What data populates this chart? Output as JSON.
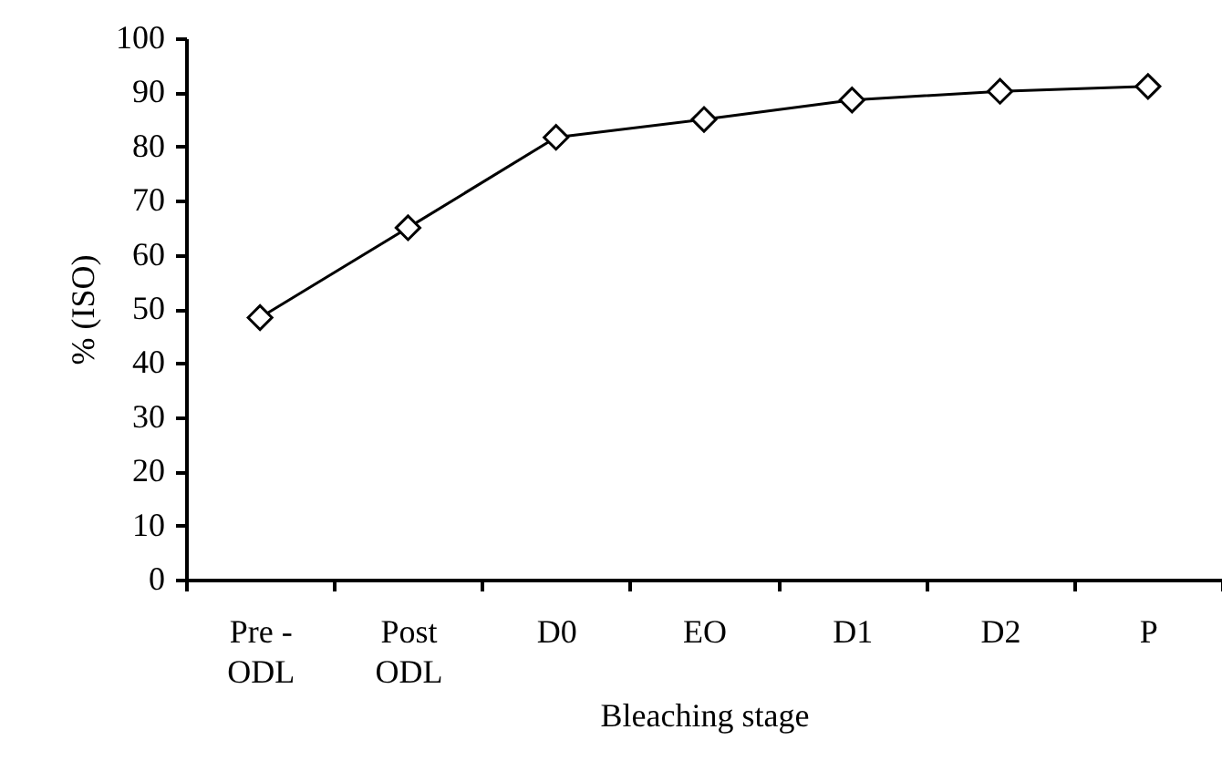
{
  "chart_data": {
    "type": "line",
    "xlabel": "Bleaching stage",
    "ylabel": "% (ISO)",
    "categories": [
      "Pre - ODL",
      "Post ODL",
      "D0",
      "EO",
      "D1",
      "D2",
      "P"
    ],
    "series": [
      {
        "color": "#000000",
        "values": [
          48.4,
          65,
          81.7,
          85,
          88.6,
          90.2,
          91.1
        ]
      }
    ],
    "ylim": [
      0,
      100
    ],
    "yticks": [
      0,
      10,
      20,
      30,
      40,
      50,
      60,
      70,
      80,
      90,
      100
    ],
    "marker": "diamond",
    "line_style": "solid",
    "grid": false,
    "legend": false
  }
}
